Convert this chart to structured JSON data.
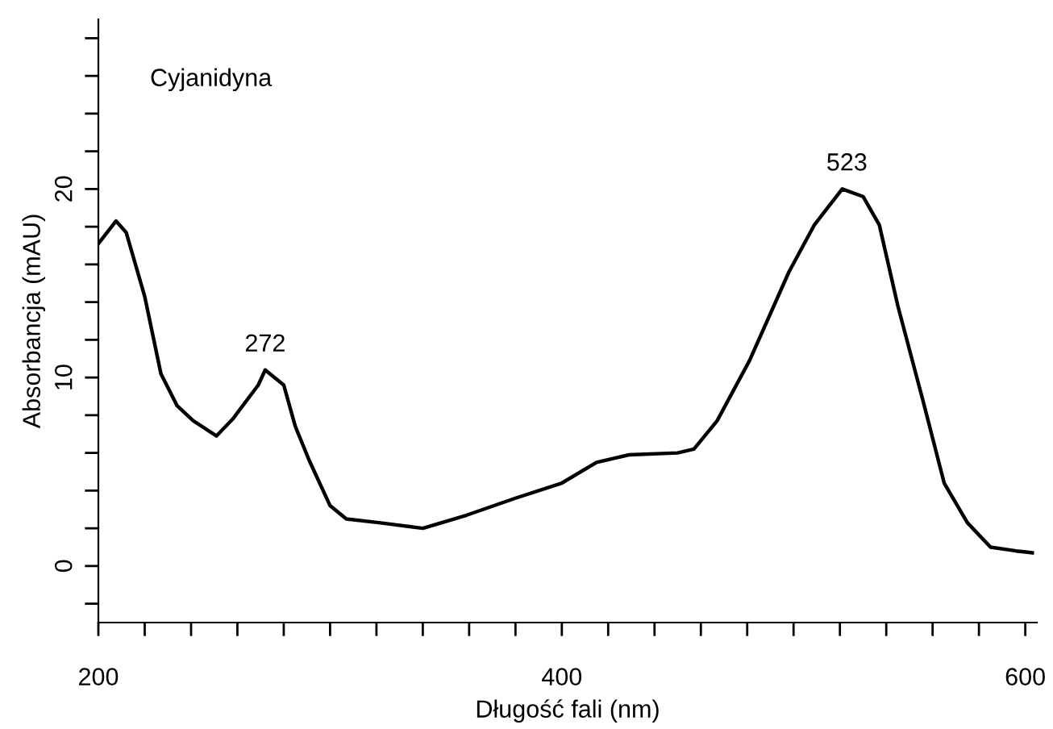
{
  "chart_data": {
    "type": "line",
    "xlabel": "Długość fali (nm)",
    "ylabel": "Absorbancja (mAU)",
    "xlim": [
      200,
      605
    ],
    "ylim": [
      -3,
      29
    ],
    "xticks": [
      200,
      {
        "value": 220,
        "label": null
      },
      {
        "value": 240,
        "label": null
      },
      {
        "value": 260,
        "label": null
      },
      {
        "value": 280,
        "label": null
      },
      {
        "value": 300,
        "label": null
      },
      {
        "value": 320,
        "label": null
      },
      {
        "value": 340,
        "label": null
      },
      {
        "value": 360,
        "label": null
      },
      {
        "value": 380,
        "label": null
      },
      400,
      {
        "value": 420,
        "label": null
      },
      {
        "value": 440,
        "label": null
      },
      {
        "value": 460,
        "label": null
      },
      {
        "value": 480,
        "label": null
      },
      {
        "value": 500,
        "label": null
      },
      {
        "value": 520,
        "label": null
      },
      {
        "value": 540,
        "label": null
      },
      {
        "value": 560,
        "label": null
      },
      {
        "value": 580,
        "label": null
      },
      600
    ],
    "yticks": [
      {
        "value": -2,
        "label": null
      },
      0,
      {
        "value": 2,
        "label": null
      },
      {
        "value": 4,
        "label": null
      },
      {
        "value": 6,
        "label": null
      },
      {
        "value": 8,
        "label": null
      },
      10,
      {
        "value": 12,
        "label": null
      },
      {
        "value": 14,
        "label": null
      },
      {
        "value": 16,
        "label": null
      },
      {
        "value": 18,
        "label": null
      },
      20,
      {
        "value": 22,
        "label": null
      },
      {
        "value": 24,
        "label": null
      },
      {
        "value": 26,
        "label": null
      },
      {
        "value": 28,
        "label": null
      }
    ],
    "grid": false,
    "marker": "none",
    "line_style": "solid",
    "annotations": [
      "Cyjanidyna",
      {
        "text": "272",
        "x": 272,
        "y": 10.4
      },
      {
        "text": "523",
        "x": 523,
        "y": 20.0
      }
    ],
    "series": [
      {
        "color": "#000000",
        "x": [
          200,
          207.6,
          212,
          220,
          227,
          234,
          241,
          251,
          258,
          269,
          272,
          280,
          285,
          291,
          300,
          307,
          321,
          340,
          359,
          380,
          400,
          415,
          429,
          450,
          457,
          467,
          481,
          498,
          509,
          521,
          530,
          537,
          545,
          556,
          565,
          575,
          585,
          596,
          603
        ],
        "values": [
          17.1,
          18.3,
          17.7,
          14.3,
          10.2,
          8.5,
          7.7,
          6.9,
          7.8,
          9.6,
          10.4,
          9.6,
          7.4,
          5.6,
          3.2,
          2.5,
          2.3,
          2.0,
          2.7,
          3.6,
          4.4,
          5.5,
          5.9,
          6.0,
          6.2,
          7.7,
          10.9,
          15.6,
          18.1,
          20.0,
          19.6,
          18.1,
          13.8,
          8.7,
          4.4,
          2.3,
          1.0,
          0.8,
          0.7
        ]
      }
    ]
  }
}
